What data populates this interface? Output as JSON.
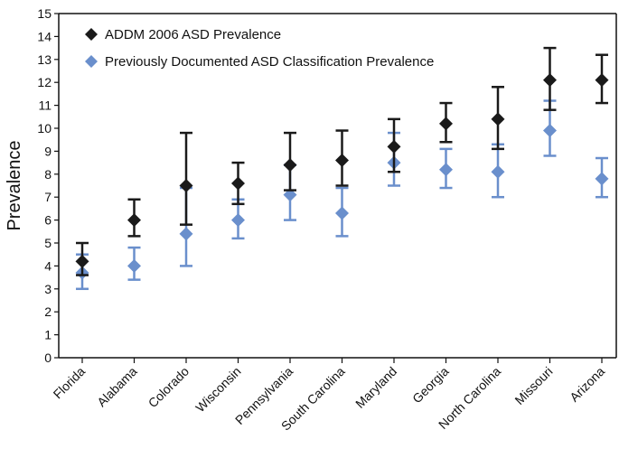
{
  "chart_data": {
    "type": "scatter",
    "title": "",
    "xlabel": "",
    "ylabel": "Prevalence",
    "ylim": [
      0,
      15
    ],
    "yticks": [
      0,
      1,
      2,
      3,
      4,
      5,
      6,
      7,
      8,
      9,
      10,
      11,
      12,
      13,
      14,
      15
    ],
    "categories": [
      "Florida",
      "Alabama",
      "Colorado",
      "Wisconsin",
      "Pennsylvania",
      "South Carolina",
      "Maryland",
      "Georgia",
      "North Carolina",
      "Missouri",
      "Arizona"
    ],
    "legend_position": "top-left",
    "grid": false,
    "series": [
      {
        "name": "ADDM 2006 ASD Prevalence",
        "color": "#1a1a1a",
        "marker": "diamond",
        "values": [
          4.2,
          6.0,
          7.5,
          7.6,
          8.4,
          8.6,
          9.2,
          10.2,
          10.4,
          12.1,
          12.1
        ],
        "lower": [
          3.6,
          5.3,
          5.8,
          6.7,
          7.3,
          7.5,
          8.1,
          9.4,
          9.1,
          10.8,
          11.1
        ],
        "upper": [
          5.0,
          6.9,
          9.8,
          8.5,
          9.8,
          9.9,
          10.4,
          11.1,
          11.8,
          13.5,
          13.2
        ]
      },
      {
        "name": "Previously Documented ASD Classification Prevalence",
        "color": "#6a8fcc",
        "marker": "diamond",
        "values": [
          3.7,
          4.0,
          5.4,
          6.0,
          7.1,
          6.3,
          8.5,
          8.2,
          8.1,
          9.9,
          7.8
        ],
        "lower": [
          3.0,
          3.4,
          4.0,
          5.2,
          6.0,
          5.3,
          7.5,
          7.4,
          7.0,
          8.8,
          7.0
        ],
        "upper": [
          4.5,
          4.8,
          7.4,
          6.9,
          8.4,
          7.4,
          9.8,
          9.1,
          9.3,
          11.2,
          8.7
        ]
      }
    ]
  }
}
